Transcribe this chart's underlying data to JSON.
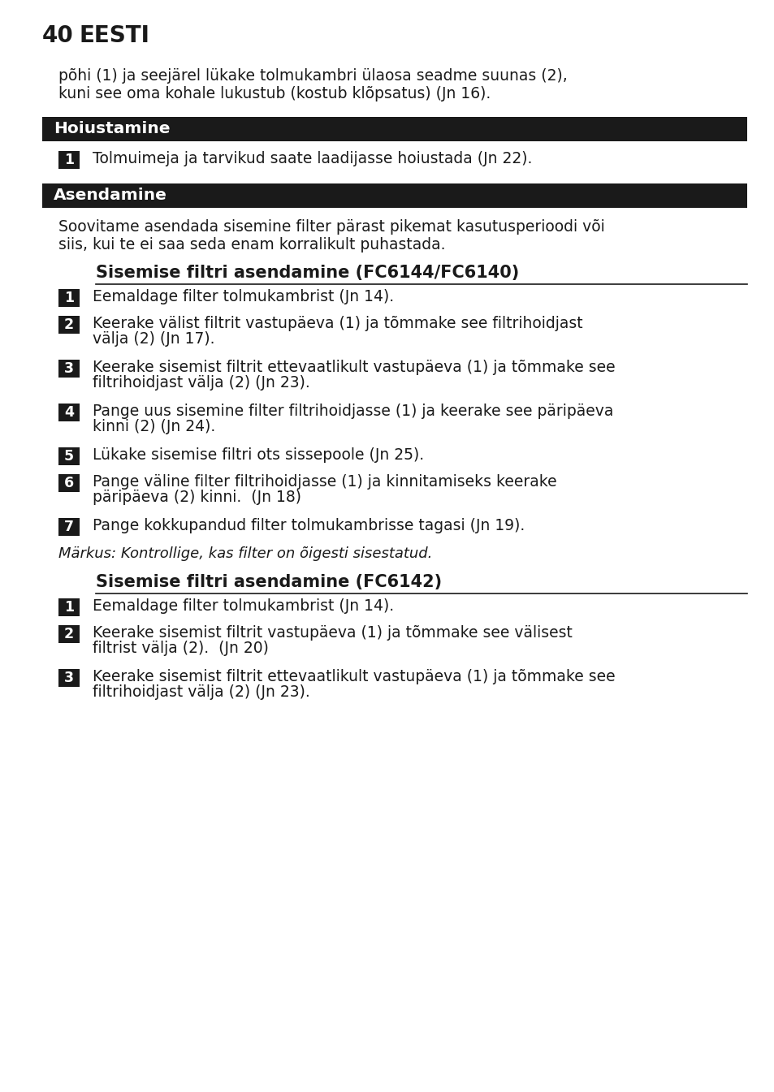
{
  "page_number": "40",
  "page_title": "EESTI",
  "bg_color": "#ffffff",
  "text_color": "#1a1a1a",
  "header_bg": "#1a1a1a",
  "header_text_color": "#ffffff",
  "intro_text_line1": "põhi (1) ja seejärel lükake tolmukambri ülaosa seadme suunas (2),",
  "intro_text_line2": "kuni see oma kohale lukustub (kostub klõpsatus) (Jn 16).",
  "section1_title": "Hoiustamine",
  "section1_item1": "Tolmuimeja ja tarvikud saate laadijasse hoiustada (Jn 22).",
  "section2_title": "Asendamine",
  "section2_intro_line1": "Soovitame asendada sisemine filter pärast pikemat kasutusperioodi või",
  "section2_intro_line2": "siis, kui te ei saa seda enam korralikult puhastada.",
  "subsection1_title": "Sisemise filtri asendamine (FC6144/FC6140)",
  "subsection1_items": [
    [
      "Eemaldage filter tolmukambrist (Jn 14)."
    ],
    [
      "Keerake välist filtrit vastupäeva (1) ja tõmmake see filtrihoidjast",
      "välja (2) (Jn 17)."
    ],
    [
      "Keerake sisemist filtrit ettevaatlikult vastupäeva (1) ja tõmmake see",
      "filtrihoidjast välja (2) (Jn 23)."
    ],
    [
      "Pange uus sisemine filter filtrihoidjasse (1) ja keerake see päripäeva",
      "kinni (2) (Jn 24)."
    ],
    [
      "Lükake sisemise filtri ots sissepoole (Jn 25)."
    ],
    [
      "Pange väline filter filtrihoidjasse (1) ja kinnitamiseks keerake",
      "päripäeva (2) kinni.  (Jn 18)"
    ],
    [
      "Pange kokkupandud filter tolmukambrisse tagasi (Jn 19)."
    ]
  ],
  "note_text": "Märkus: Kontrollige, kas filter on õigesti sisestatud.",
  "subsection2_title": "Sisemise filtri asendamine (FC6142)",
  "subsection2_items": [
    [
      "Eemaldage filter tolmukambrist (Jn 14)."
    ],
    [
      "Keerake sisemist filtrit vastupäeva (1) ja tõmmake see välisest",
      "filtrist välja (2).  (Jn 20)"
    ],
    [
      "Keerake sisemist filtrit ettevaatlikult vastupäeva (1) ja tõmmake see",
      "filtrihoidjast välja (2) (Jn 23)."
    ]
  ],
  "main_font_size": 13.5,
  "title_font_size": 15.0,
  "header_font_size": 14.5,
  "page_title_font_size": 20,
  "note_font_size": 13.0
}
